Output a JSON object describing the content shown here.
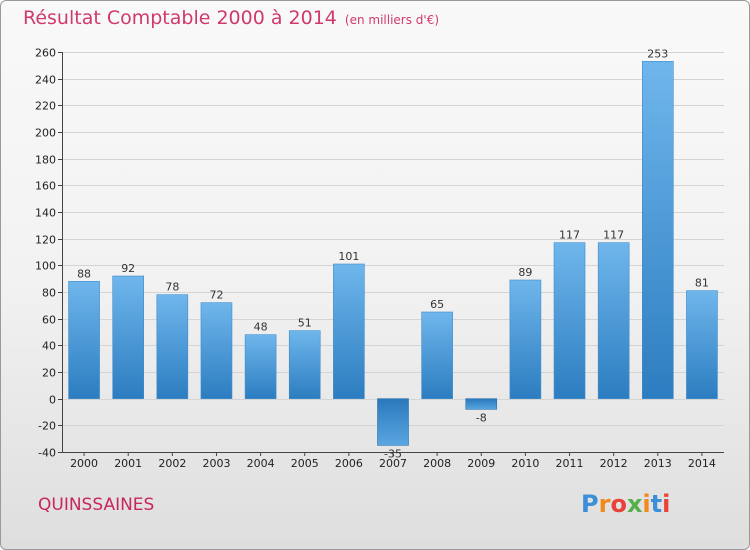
{
  "header": {
    "title": "Résultat Comptable 2000 à 2014",
    "unit": "(en milliers d'€)"
  },
  "footer": {
    "town": "QUINSSAINES",
    "logo_text": "Proxiti",
    "logo_colors": [
      "#3a8fd6",
      "#f08a1c",
      "#e8423a",
      "#56b04a",
      "#f08a1c",
      "#3a8fd6",
      "#e8423a"
    ]
  },
  "colors": {
    "bar_top": "#6fb6ec",
    "bar_bottom": "#2c7dc0",
    "neg_top": "#2a78bb",
    "neg_bottom": "#5aa6e2",
    "grid": "#d4d4d4",
    "title": "#d03a6a"
  },
  "chart_data": {
    "type": "bar",
    "title": "Résultat Comptable 2000 à 2014",
    "xlabel": "",
    "ylabel": "(en milliers d'€)",
    "categories": [
      "2000",
      "2001",
      "2002",
      "2003",
      "2004",
      "2005",
      "2006",
      "2007",
      "2008",
      "2009",
      "2010",
      "2011",
      "2012",
      "2013",
      "2014"
    ],
    "values": [
      88,
      92,
      78,
      72,
      48,
      51,
      101,
      -35,
      65,
      -8,
      89,
      117,
      117,
      253,
      81
    ],
    "ylim": [
      -40,
      260
    ],
    "yticks": [
      -40,
      -20,
      0,
      20,
      40,
      60,
      80,
      100,
      120,
      140,
      160,
      180,
      200,
      220,
      240,
      260
    ],
    "grid": true,
    "legend": "none"
  }
}
